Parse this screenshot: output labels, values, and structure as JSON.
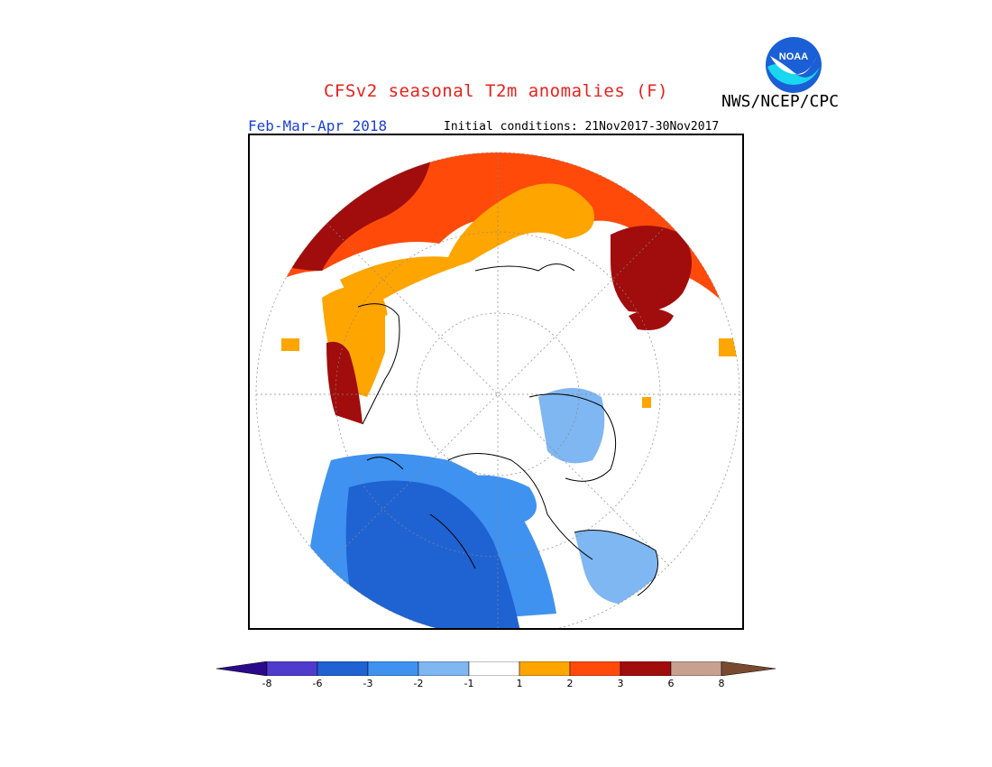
{
  "title": "CFSv2 seasonal T2m anomalies (F)",
  "organization": "NWS/NCEP/CPC",
  "logo_text": "NOAA",
  "period": "Feb-Mar-Apr 2018",
  "initial_conditions": "Initial conditions: 21Nov2017-30Nov2017",
  "legend": {
    "colors": [
      "#2a0a8a",
      "#4f3ccc",
      "#1f62d2",
      "#3f92f0",
      "#7fb7f2",
      "#ffffff",
      "#ffa500",
      "#ff4a0a",
      "#a10c0c",
      "#c8a090",
      "#7a4a30"
    ],
    "ticks": [
      "-8",
      "-6",
      "-3",
      "-2",
      "-1",
      "1",
      "2",
      "3",
      "6",
      "8"
    ]
  },
  "colors": {
    "title": "#e8211c",
    "period": "#1a3fd8",
    "warm_1_2": "#ffa500",
    "warm_2_3": "#ff4a0a",
    "warm_3_6": "#a10c0c",
    "cold_1_2": "#7fb7f2",
    "cold_2_3": "#3f92f0",
    "cold_3_6": "#1f62d2"
  }
}
